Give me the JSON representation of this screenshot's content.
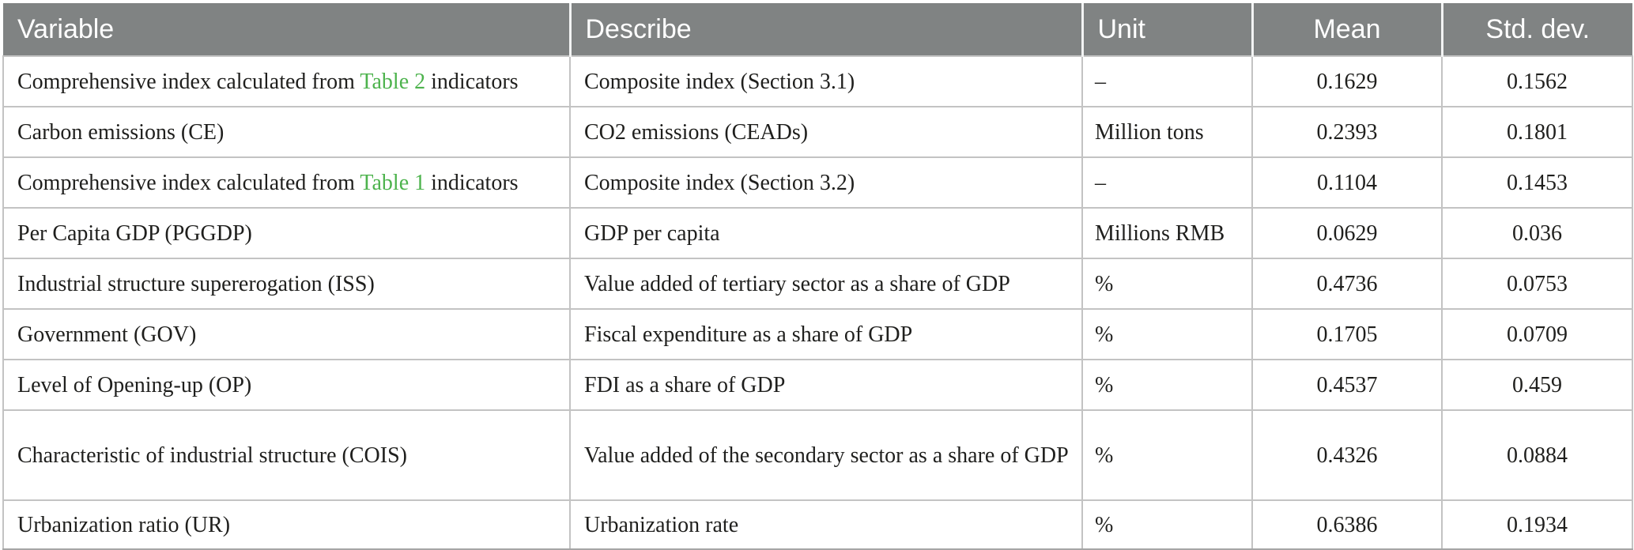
{
  "table": {
    "headers": [
      "Variable",
      "Describe",
      "Unit",
      "Mean",
      "Std. dev."
    ],
    "rows": [
      {
        "variable_prefix": "Comprehensive index calculated from ",
        "variable_link": "Table 2",
        "variable_suffix": " indicators",
        "describe": "Composite index (Section 3.1)",
        "unit": "–",
        "mean": "0.1629",
        "std": "0.1562"
      },
      {
        "variable": "Carbon emissions (CE)",
        "describe": "CO2 emissions (CEADs)",
        "unit": "Million tons",
        "mean": "0.2393",
        "std": "0.1801"
      },
      {
        "variable_prefix": "Comprehensive index calculated from ",
        "variable_link": "Table 1",
        "variable_suffix": " indicators",
        "describe": "Composite index (Section 3.2)",
        "unit": "–",
        "mean": "0.1104",
        "std": "0.1453"
      },
      {
        "variable": "Per Capita GDP (PGGDP)",
        "describe": "GDP per capita",
        "unit": "Millions RMB",
        "mean": "0.0629",
        "std": "0.036"
      },
      {
        "variable": "Industrial structure supererogation (ISS)",
        "describe": "Value added of tertiary sector as a share of GDP",
        "unit": "%",
        "mean": "0.4736",
        "std": "0.0753"
      },
      {
        "variable": "Government (GOV)",
        "describe": "Fiscal expenditure as a share of GDP",
        "unit": "%",
        "mean": "0.1705",
        "std": "0.0709"
      },
      {
        "variable": "Level of Opening-up (OP)",
        "describe": "FDI as a share of GDP",
        "unit": "%",
        "mean": "0.4537",
        "std": "0.459"
      },
      {
        "variable": "Characteristic of industrial structure (COIS)",
        "describe": "Value added of the secondary sector as a share of GDP",
        "unit": "%",
        "mean": "0.4326",
        "std": "0.0884"
      },
      {
        "variable": "Urbanization ratio (UR)",
        "describe": "Urbanization rate",
        "unit": "%",
        "mean": "0.6386",
        "std": "0.1934"
      }
    ]
  },
  "colors": {
    "header_bg": "#808383",
    "header_text": "#ffffff",
    "link_green": "#4db34d",
    "body_text": "#1f1f1d",
    "border": "#c3c3c3"
  }
}
